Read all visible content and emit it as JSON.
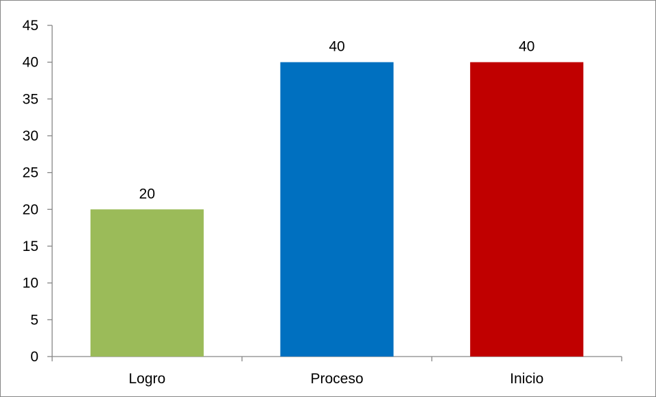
{
  "chart_data": {
    "type": "bar",
    "title": "",
    "xlabel": "",
    "ylabel": "",
    "categories": [
      "Logro",
      "Proceso",
      "Inicio"
    ],
    "values": [
      20,
      40,
      40
    ],
    "colors": [
      "#9BBB59",
      "#0070C0",
      "#C00000"
    ],
    "data_labels": [
      "20",
      "40",
      "40"
    ],
    "ylim": [
      0,
      45
    ],
    "yticks": [
      0,
      5,
      10,
      15,
      20,
      25,
      30,
      35,
      40,
      45
    ],
    "ytick_labels": [
      "0",
      "5",
      "10",
      "15",
      "20",
      "25",
      "30",
      "35",
      "40",
      "45"
    ],
    "grid": false,
    "legend": false
  }
}
